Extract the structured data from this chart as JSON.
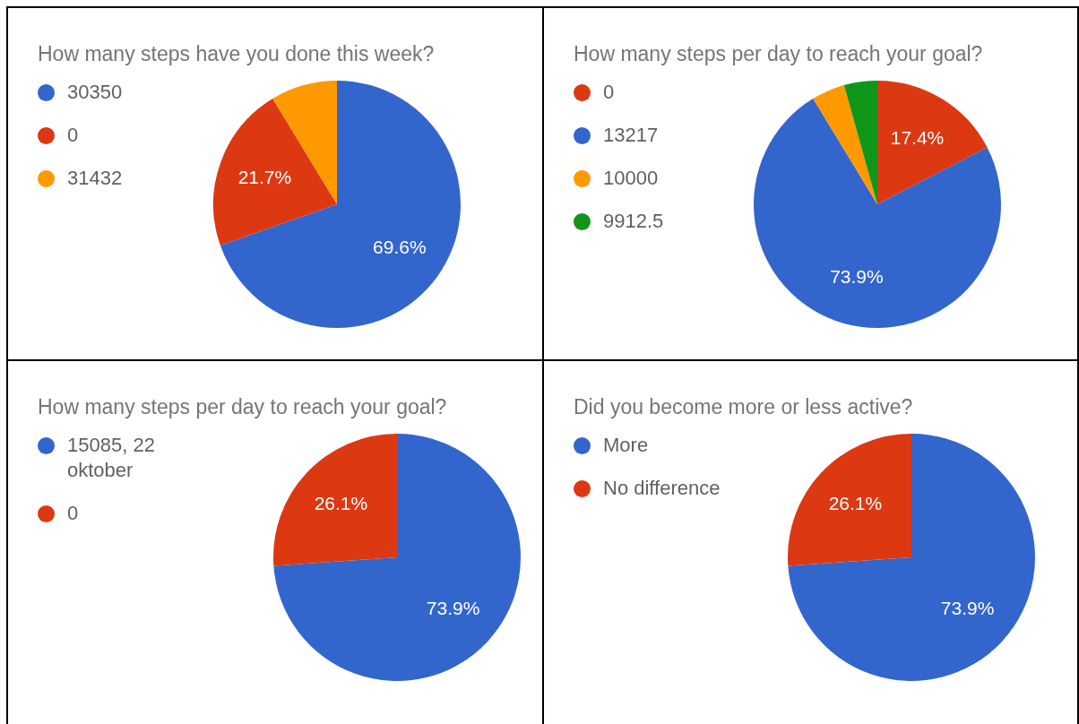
{
  "chart_data": [
    {
      "type": "pie",
      "title": "How many steps have you done this week?",
      "categories": [
        "30350",
        "0",
        "31432"
      ],
      "values": [
        69.6,
        21.7,
        8.7
      ],
      "colors": [
        "#3366cc",
        "#dc3912",
        "#ff9900"
      ],
      "value_labels": [
        "69.6%",
        "21.7%",
        null
      ],
      "legend": "left"
    },
    {
      "type": "pie",
      "title": "How many steps per day to reach your goal?",
      "categories": [
        "0",
        "13217",
        "10000",
        "9912.5"
      ],
      "values": [
        17.4,
        73.9,
        4.35,
        4.35
      ],
      "colors": [
        "#dc3912",
        "#3366cc",
        "#ff9900",
        "#109618"
      ],
      "value_labels": [
        "17.4%",
        "73.9%",
        null,
        null
      ],
      "legend": "left"
    },
    {
      "type": "pie",
      "title": "How many steps per day to reach your goal?",
      "categories": [
        "15085, 22 oktober",
        "0"
      ],
      "values": [
        73.9,
        26.1
      ],
      "colors": [
        "#3366cc",
        "#dc3912"
      ],
      "value_labels": [
        "73.9%",
        "26.1%"
      ],
      "legend": "left"
    },
    {
      "type": "pie",
      "title": "Did you become more or less active?",
      "categories": [
        "More",
        "No difference"
      ],
      "values": [
        73.9,
        26.1
      ],
      "colors": [
        "#3366cc",
        "#dc3912"
      ],
      "value_labels": [
        "73.9%",
        "26.1%"
      ],
      "legend": "left"
    }
  ]
}
